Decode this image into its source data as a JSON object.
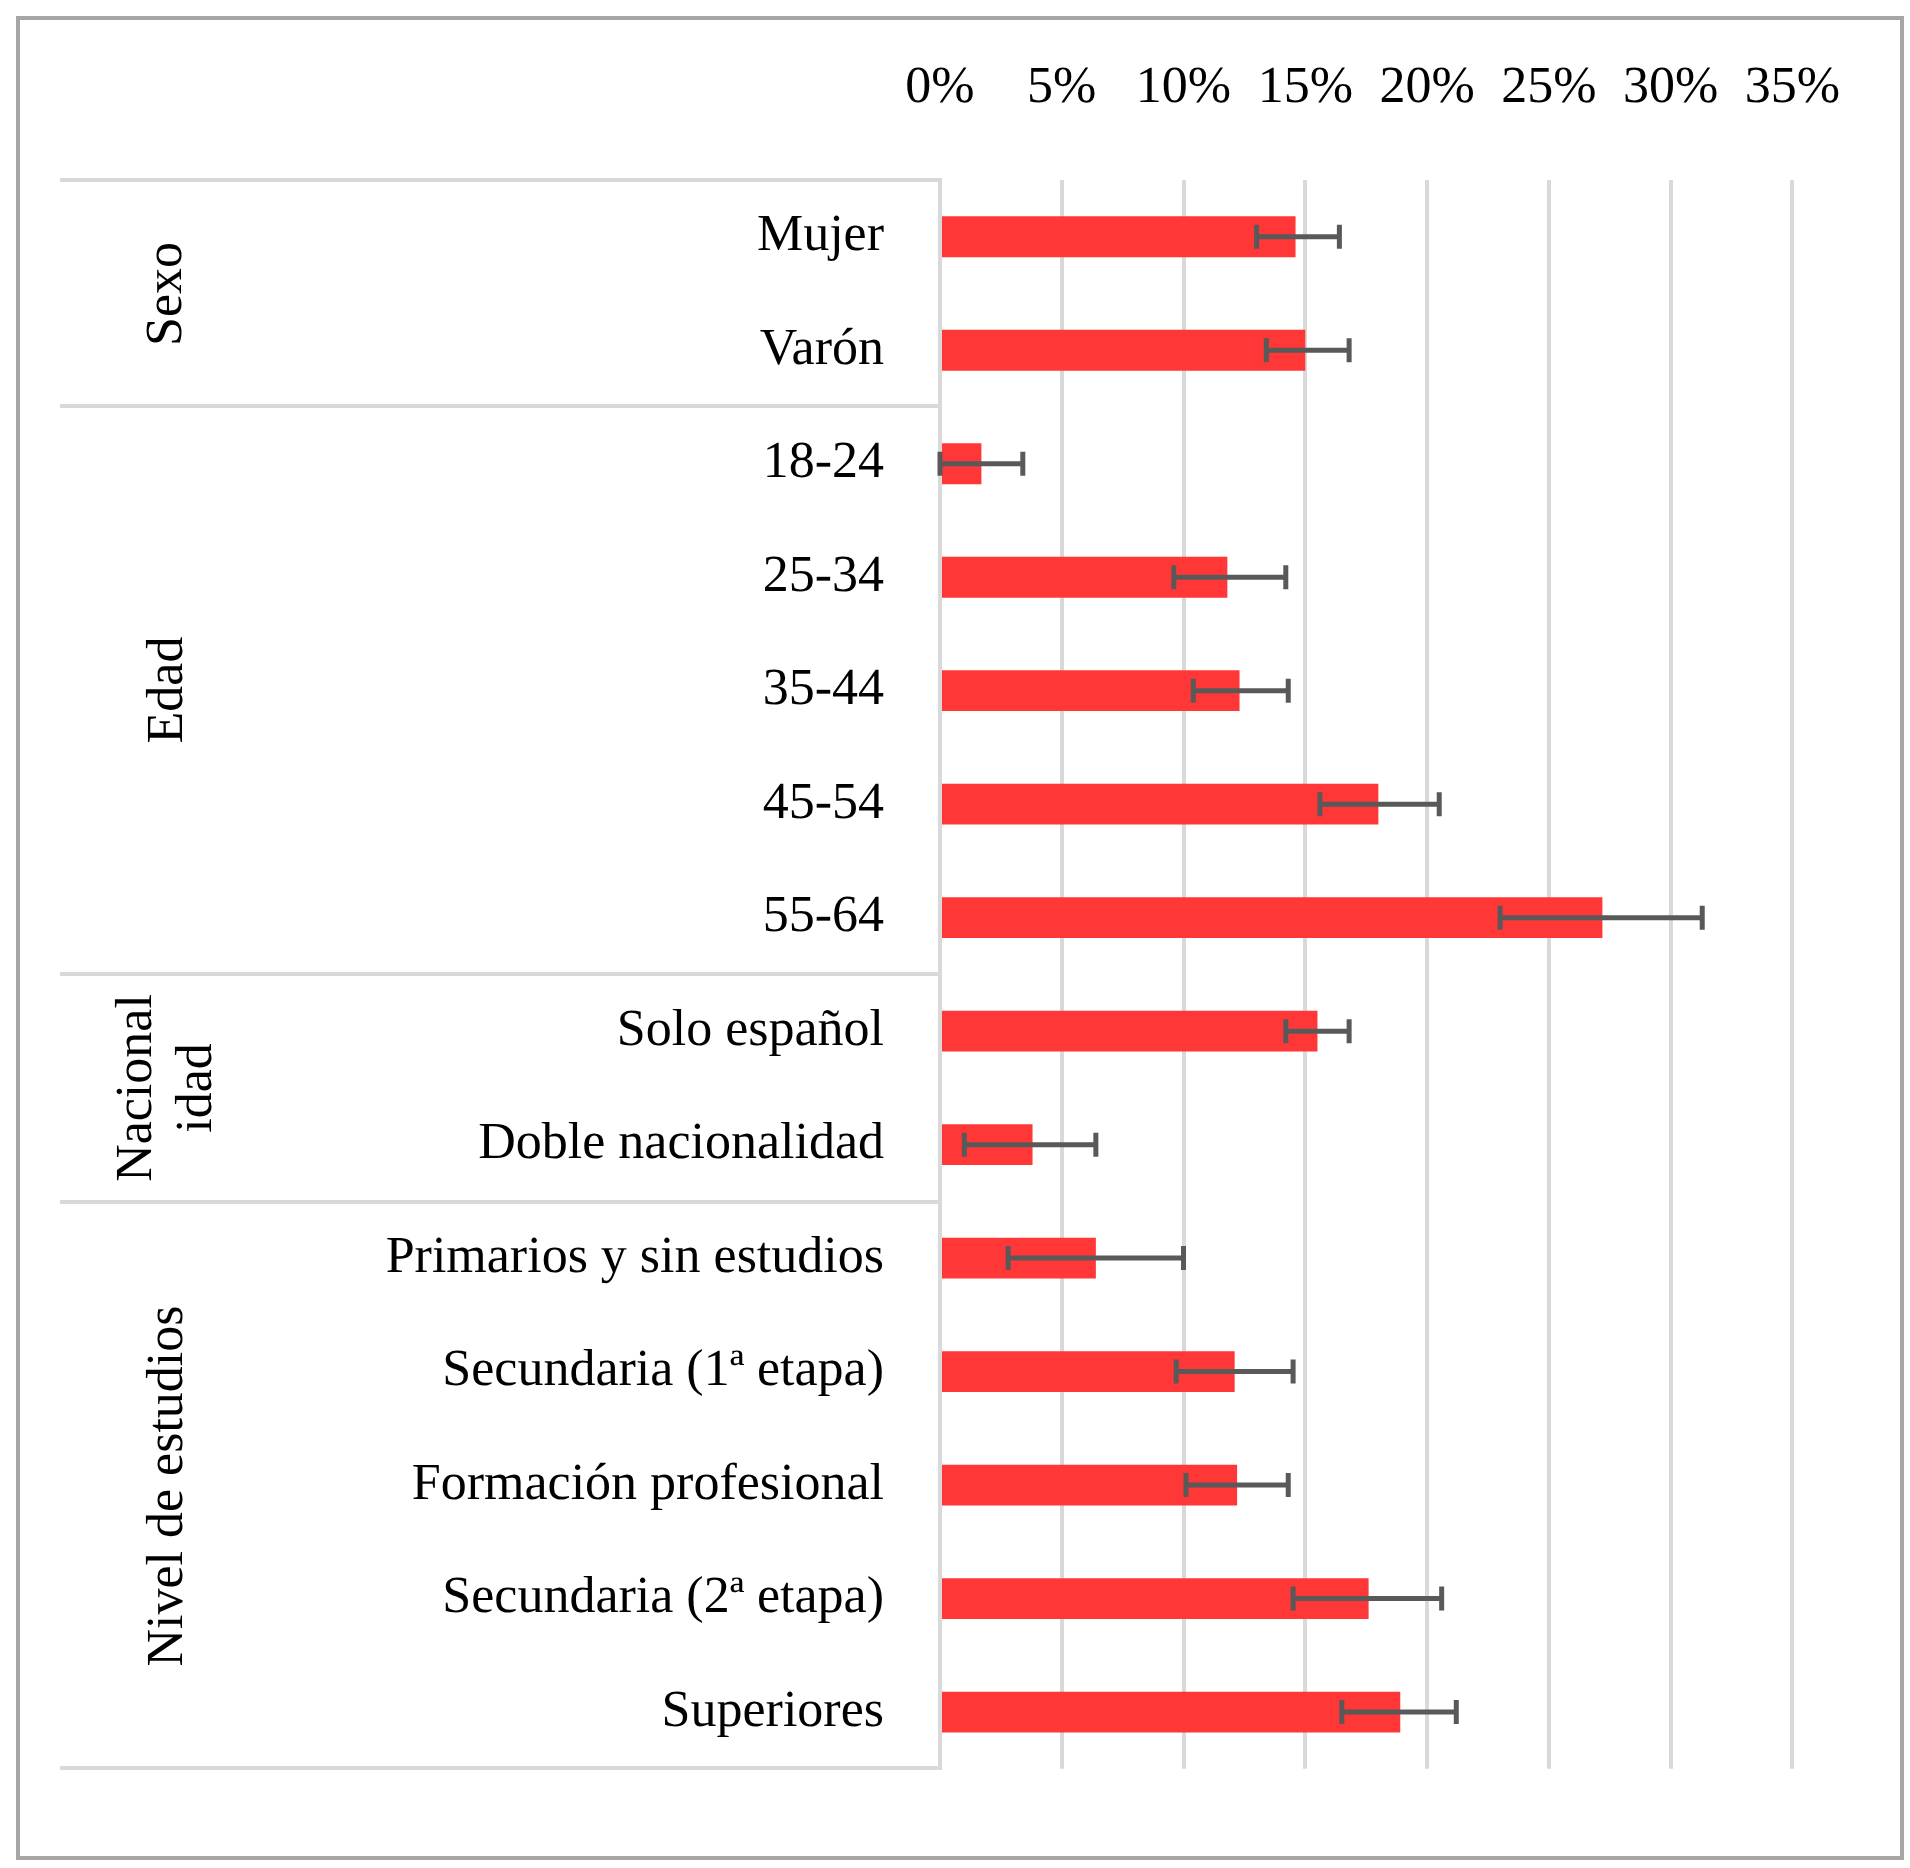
{
  "chart_data": {
    "type": "bar",
    "orientation": "horizontal",
    "categories": [
      "Mujer",
      "Varón",
      "18-24",
      "25-34",
      "35-44",
      "45-54",
      "55-64",
      "Solo español",
      "Doble nacionalidad",
      "Primarios y sin estudios",
      "Secundaria (1ª etapa)",
      "Formación profesional",
      "Secundaria (2ª etapa)",
      "Superiores"
    ],
    "values": [
      14.6,
      15.0,
      1.7,
      11.8,
      12.3,
      18.0,
      27.2,
      15.5,
      3.8,
      6.4,
      12.1,
      12.2,
      17.6,
      18.9
    ],
    "errors": [
      [
        13.0,
        16.4
      ],
      [
        13.4,
        16.8
      ],
      [
        0,
        3.4
      ],
      [
        9.6,
        14.2
      ],
      [
        10.4,
        14.3
      ],
      [
        15.6,
        20.5
      ],
      [
        23.0,
        31.3
      ],
      [
        14.2,
        16.8
      ],
      [
        1.0,
        6.4
      ],
      [
        2.8,
        10.0
      ],
      [
        9.7,
        14.5
      ],
      [
        10.1,
        14.3
      ],
      [
        14.5,
        20.6
      ],
      [
        16.5,
        21.2
      ]
    ],
    "color": "#ff3737",
    "xlim": [
      0,
      35
    ],
    "xticks": [
      {
        "value": 0,
        "label": "0%"
      },
      {
        "value": 5,
        "label": "5%"
      },
      {
        "value": 10,
        "label": "10%"
      },
      {
        "value": 15,
        "label": "15%"
      },
      {
        "value": 20,
        "label": "20%"
      },
      {
        "value": 25,
        "label": "25%"
      },
      {
        "value": 30,
        "label": "30%"
      },
      {
        "value": 35,
        "label": "35%"
      }
    ],
    "grid": "x",
    "legend": false,
    "annotations": [
      "Sexo",
      "Edad",
      "Nacionalidad",
      "Nivel de estudios"
    ]
  }
}
